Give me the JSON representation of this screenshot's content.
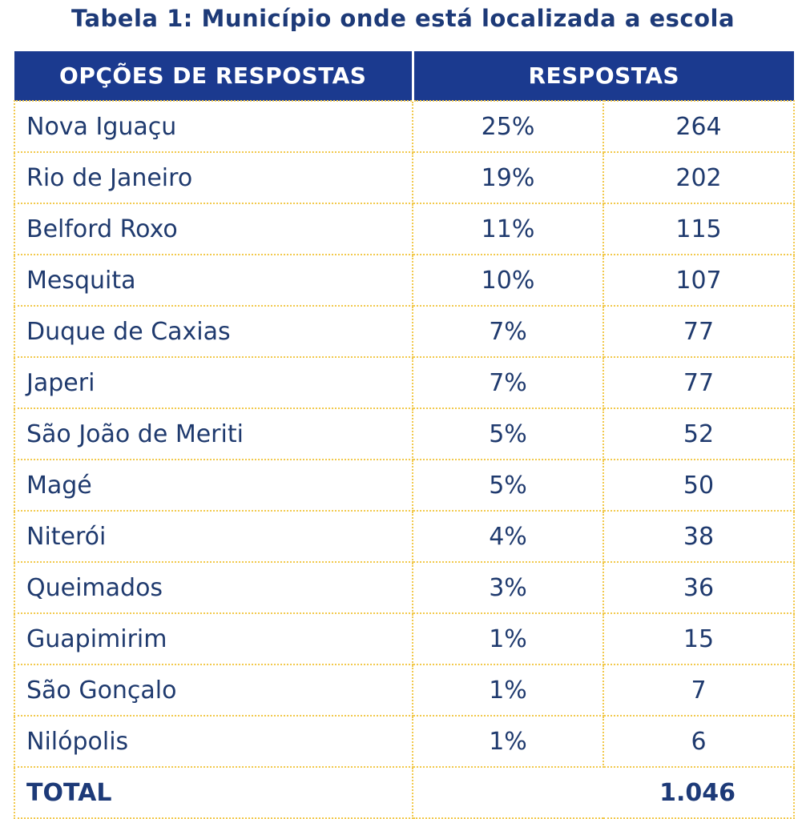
{
  "title": "Tabela 1: Município onde está localizada a escola",
  "header": {
    "col1": "OPÇÕES DE RESPOSTAS",
    "col2": "RESPOSTAS"
  },
  "rows": [
    {
      "name": "Nova Iguaçu",
      "pct": "25%",
      "count": "264"
    },
    {
      "name": "Rio de Janeiro",
      "pct": "19%",
      "count": "202"
    },
    {
      "name": "Belford Roxo",
      "pct": "11%",
      "count": "115"
    },
    {
      "name": "Mesquita",
      "pct": "10%",
      "count": "107"
    },
    {
      "name": "Duque de Caxias",
      "pct": "7%",
      "count": "77"
    },
    {
      "name": "Japeri",
      "pct": "7%",
      "count": "77"
    },
    {
      "name": "São João de Meriti",
      "pct": "5%",
      "count": "52"
    },
    {
      "name": "Magé",
      "pct": "5%",
      "count": "50"
    },
    {
      "name": "Niterói",
      "pct": "4%",
      "count": "38"
    },
    {
      "name": "Queimados",
      "pct": "3%",
      "count": "36"
    },
    {
      "name": "Guapimirim",
      "pct": "1%",
      "count": "15"
    },
    {
      "name": "São Gonçalo",
      "pct": "1%",
      "count": "7"
    },
    {
      "name": "Nilópolis",
      "pct": "1%",
      "count": "6"
    }
  ],
  "total": {
    "label": "TOTAL",
    "value": "1.046"
  },
  "colors": {
    "header_bg": "#1b3a8f",
    "text": "#1f3a6e",
    "grid": "#f2c94c"
  }
}
